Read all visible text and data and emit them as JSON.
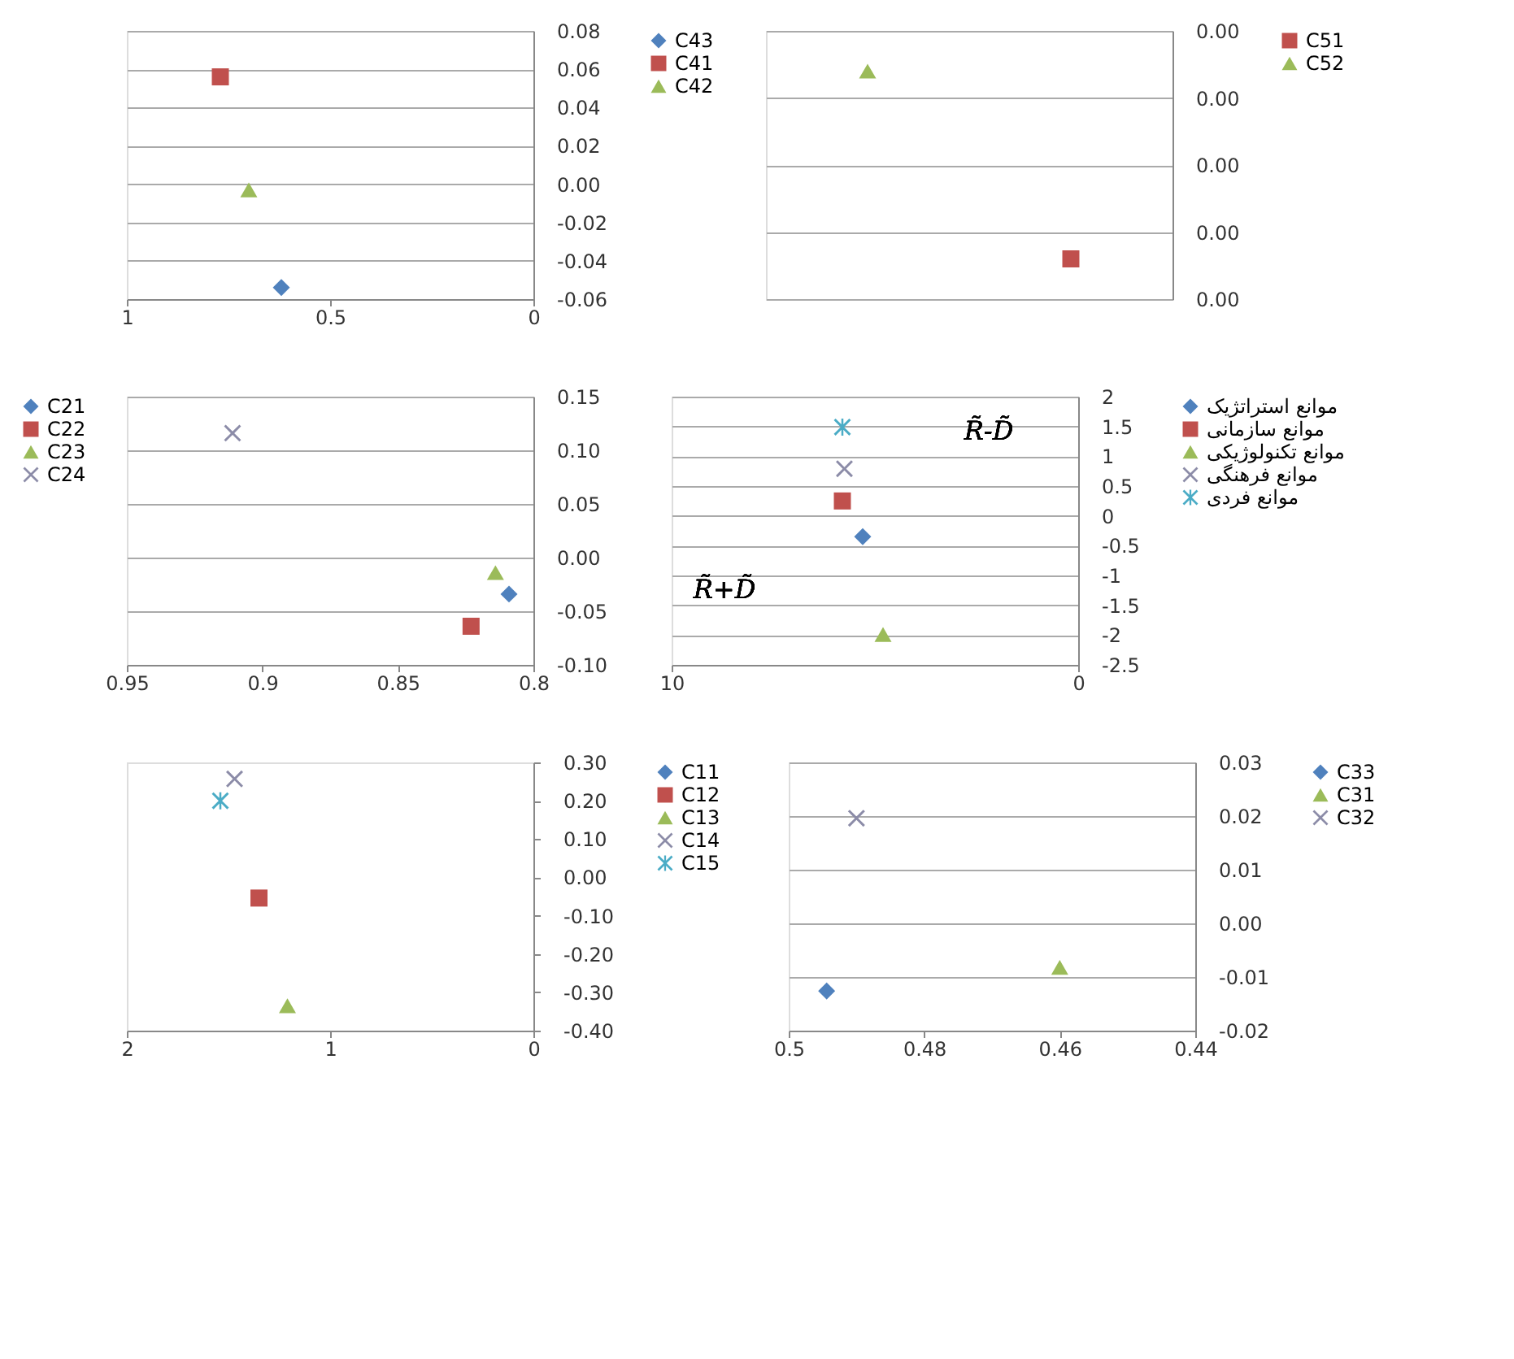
{
  "chart_data": [
    {
      "type": "scatter",
      "xlim": [
        1,
        0
      ],
      "xticks": [
        1,
        0.5,
        0
      ],
      "ylim": [
        -0.06,
        0.08
      ],
      "yticks": [
        0.08,
        0.06,
        0.04,
        0.02,
        {
          "value": 0,
          "label": "0.00"
        },
        -0.02,
        -0.04,
        -0.06
      ],
      "grid": "y",
      "legend": "right",
      "series": [
        {
          "name": "C43",
          "color": "#4f81bd",
          "marker": "diamond",
          "x": [
            0.62
          ],
          "values": [
            -0.054
          ]
        },
        {
          "name": "C41",
          "color": "#c0504d",
          "marker": "square",
          "x": [
            0.77
          ],
          "values": [
            0.056
          ]
        },
        {
          "name": "C42",
          "color": "#9bbb59",
          "marker": "triangle",
          "x": [
            0.7
          ],
          "values": [
            -0.003
          ]
        }
      ]
    },
    {
      "type": "scatter",
      "categories": [
        null,
        null
      ],
      "tick_labels": "y",
      "ylim": [
        -0.002,
        0.002
      ],
      "yticks": [
        {
          "value": -0.002,
          "label": "0.00"
        },
        {
          "value": -0.001,
          "label": "0.00"
        },
        {
          "value": 0,
          "label": "0.00"
        },
        {
          "value": 0.001,
          "label": "0.00"
        },
        {
          "value": 0.002,
          "label": "0.00"
        }
      ],
      "grid": "y",
      "legend": "right",
      "series": [
        {
          "name": "C51",
          "color": "#c0504d",
          "marker": "square",
          "values": [
            null,
            -0.0014
          ]
        },
        {
          "name": "C52",
          "color": "#9bbb59",
          "marker": "triangle",
          "values": [
            0.0014,
            null
          ]
        }
      ]
    },
    {
      "type": "scatter",
      "xlim": [
        0.95,
        0.8
      ],
      "xticks": [
        0.95,
        0.9,
        0.85,
        0.8
      ],
      "ylim": [
        -0.1,
        0.15
      ],
      "yticks": [
        0.15,
        {
          "value": 0.1,
          "label": "0.10"
        },
        0.05,
        {
          "value": 0,
          "label": "0.00"
        },
        -0.05,
        {
          "value": -0.1,
          "label": "-0.10"
        }
      ],
      "grid": "y",
      "legend": "left",
      "series": [
        {
          "name": "C21",
          "color": "#4f81bd",
          "marker": "diamond",
          "x": [
            0.809
          ],
          "values": [
            -0.034
          ]
        },
        {
          "name": "C22",
          "color": "#c0504d",
          "marker": "square",
          "x": [
            0.823
          ],
          "values": [
            -0.064
          ]
        },
        {
          "name": "C23",
          "color": "#9bbb59",
          "marker": "triangle",
          "x": [
            0.814
          ],
          "values": [
            -0.014
          ]
        },
        {
          "name": "C24",
          "color": "#8c8ca8",
          "marker": "cross",
          "x": [
            0.911
          ],
          "values": [
            0.116
          ]
        }
      ]
    },
    {
      "type": "scatter",
      "xlabel": "R̃+D̃",
      "ylabel": "R̃-D̃",
      "xlim": [
        10,
        0
      ],
      "xticks": [
        10,
        0
      ],
      "ylim": [
        -2.5,
        2
      ],
      "yticks": [
        2,
        1.5,
        1,
        0.5,
        0,
        -0.5,
        -1,
        -1.5,
        -2,
        -2.5
      ],
      "grid": "y",
      "legend": "right",
      "series": [
        {
          "name": "موانع استراتژیک",
          "color": "#4f81bd",
          "marker": "diamond",
          "x": [
            5.3
          ],
          "values": [
            -0.35
          ]
        },
        {
          "name": "موانع سازمانی",
          "color": "#c0504d",
          "marker": "square",
          "x": [
            5.8
          ],
          "values": [
            0.25
          ]
        },
        {
          "name": "موانع تکنولوژیکی",
          "color": "#9bbb59",
          "marker": "triangle",
          "x": [
            4.8
          ],
          "values": [
            -1.99
          ]
        },
        {
          "name": "موانع فرهنگی",
          "color": "#8c8ca8",
          "marker": "cross",
          "x": [
            5.75
          ],
          "values": [
            0.79
          ]
        },
        {
          "name": "موانع فردی",
          "color": "#4bacc6",
          "marker": "star",
          "x": [
            5.8
          ],
          "values": [
            1.49
          ]
        }
      ]
    },
    {
      "type": "scatter",
      "xlim": [
        2,
        0
      ],
      "xticks": [
        2,
        1,
        0
      ],
      "ylim": [
        -0.4,
        0.3
      ],
      "yticks": [
        {
          "value": 0.3,
          "label": "0.30"
        },
        {
          "value": 0.2,
          "label": "0.20"
        },
        {
          "value": 0.1,
          "label": "0.10"
        },
        {
          "value": 0,
          "label": "0.00"
        },
        {
          "value": -0.1,
          "label": "-0.10"
        },
        {
          "value": -0.2,
          "label": "-0.20"
        },
        {
          "value": -0.3,
          "label": "-0.30"
        },
        {
          "value": -0.4,
          "label": "-0.40"
        }
      ],
      "legend": "right",
      "series": [
        {
          "name": "C11",
          "color": "#4f81bd",
          "marker": "diamond",
          "values": [
            null
          ]
        },
        {
          "name": "C12",
          "color": "#c0504d",
          "marker": "square",
          "x": [
            1.35
          ],
          "values": [
            -0.054
          ]
        },
        {
          "name": "C13",
          "color": "#9bbb59",
          "marker": "triangle",
          "x": [
            1.21
          ],
          "values": [
            -0.335
          ]
        },
        {
          "name": "C14",
          "color": "#8c8ca8",
          "marker": "cross",
          "x": [
            1.47
          ],
          "values": [
            0.257
          ]
        },
        {
          "name": "C15",
          "color": "#4bacc6",
          "marker": "star",
          "x": [
            1.54
          ],
          "values": [
            0.2
          ]
        }
      ]
    },
    {
      "type": "scatter",
      "xlim": [
        0.5,
        0.44
      ],
      "xticks": [
        0.5,
        0.48,
        0.46,
        0.44
      ],
      "ylim": [
        -0.02,
        0.03
      ],
      "yticks": [
        0.03,
        0.02,
        0.01,
        {
          "value": 0,
          "label": "0.00"
        },
        -0.01,
        -0.02
      ],
      "grid": "y",
      "legend": "right",
      "series": [
        {
          "name": "C33",
          "color": "#4f81bd",
          "marker": "diamond",
          "x": [
            0.4944
          ],
          "values": [
            -0.0126
          ]
        },
        {
          "name": "C31",
          "color": "#9bbb59",
          "marker": "triangle",
          "x": [
            0.46
          ],
          "values": [
            -0.0082
          ]
        },
        {
          "name": "C32",
          "color": "#8c8ca8",
          "marker": "cross",
          "x": [
            0.49
          ],
          "values": [
            0.0196
          ]
        }
      ]
    }
  ]
}
